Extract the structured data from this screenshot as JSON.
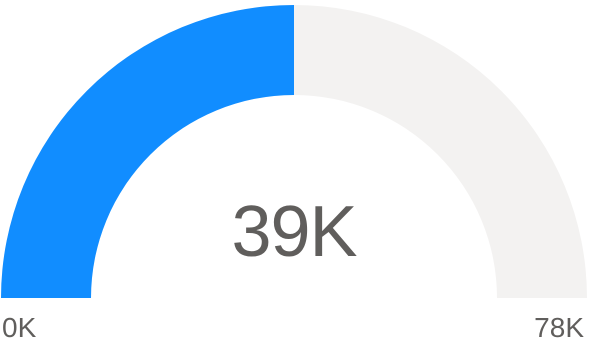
{
  "chart_data": {
    "type": "gauge",
    "value": 39,
    "min": 0,
    "max": 78,
    "value_label": "39K",
    "min_label": "0K",
    "max_label": "78K",
    "fill_color": "#118DFF",
    "track_color": "#F3F2F1"
  }
}
